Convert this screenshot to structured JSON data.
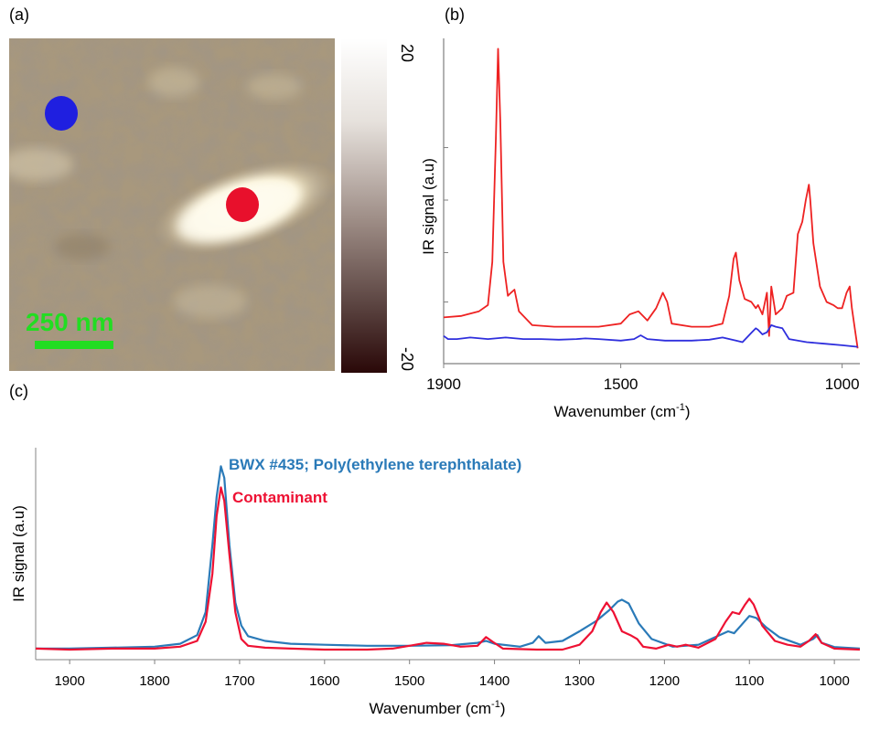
{
  "panels": {
    "a": {
      "label": "(a)",
      "scale_bar_text": "250 nm",
      "colorbar_max": "20",
      "colorbar_min": "-20",
      "markers": [
        {
          "name": "blue-marker",
          "color": "#1f1fe0"
        },
        {
          "name": "red-marker",
          "color": "#e8102c"
        }
      ],
      "colors": {
        "scale_bar": "#22dd22",
        "colorbar_top": "#ffffff",
        "colorbar_bottom": "#2a0808"
      }
    },
    "b": {
      "label": "(b)"
    },
    "c": {
      "label": "(c)"
    }
  },
  "chart_data": [
    {
      "type": "line",
      "panel": "b",
      "xlabel": "Wavenumber (cm",
      "xlabel_sup": "-1",
      "xlabel_end": ")",
      "ylabel": "IR signal (a.u)",
      "xlim": [
        1900,
        960
      ],
      "ylim": [
        0,
        1
      ],
      "x_ticks": [
        1900,
        1500,
        1000
      ],
      "series": [
        {
          "color": "#ee2222",
          "points": [
            [
              1900,
              0.12
            ],
            [
              1860,
              0.125
            ],
            [
              1820,
              0.14
            ],
            [
              1800,
              0.16
            ],
            [
              1790,
              0.3
            ],
            [
              1782,
              0.7
            ],
            [
              1777,
              0.99
            ],
            [
              1772,
              0.75
            ],
            [
              1765,
              0.3
            ],
            [
              1755,
              0.19
            ],
            [
              1748,
              0.2
            ],
            [
              1740,
              0.21
            ],
            [
              1730,
              0.14
            ],
            [
              1700,
              0.095
            ],
            [
              1650,
              0.09
            ],
            [
              1600,
              0.09
            ],
            [
              1550,
              0.09
            ],
            [
              1500,
              0.1
            ],
            [
              1480,
              0.13
            ],
            [
              1460,
              0.14
            ],
            [
              1440,
              0.11
            ],
            [
              1420,
              0.15
            ],
            [
              1405,
              0.2
            ],
            [
              1395,
              0.17
            ],
            [
              1385,
              0.1
            ],
            [
              1340,
              0.09
            ],
            [
              1300,
              0.09
            ],
            [
              1270,
              0.1
            ],
            [
              1255,
              0.19
            ],
            [
              1245,
              0.31
            ],
            [
              1240,
              0.33
            ],
            [
              1232,
              0.24
            ],
            [
              1220,
              0.18
            ],
            [
              1205,
              0.17
            ],
            [
              1195,
              0.15
            ],
            [
              1190,
              0.16
            ],
            [
              1180,
              0.13
            ],
            [
              1170,
              0.2
            ],
            [
              1165,
              0.06
            ],
            [
              1160,
              0.22
            ],
            [
              1150,
              0.13
            ],
            [
              1135,
              0.15
            ],
            [
              1125,
              0.19
            ],
            [
              1110,
              0.2
            ],
            [
              1100,
              0.39
            ],
            [
              1090,
              0.43
            ],
            [
              1082,
              0.5
            ],
            [
              1075,
              0.55
            ],
            [
              1072,
              0.5
            ],
            [
              1065,
              0.36
            ],
            [
              1050,
              0.22
            ],
            [
              1035,
              0.17
            ],
            [
              1020,
              0.16
            ],
            [
              1010,
              0.15
            ],
            [
              1000,
              0.15
            ],
            [
              990,
              0.2
            ],
            [
              983,
              0.22
            ],
            [
              978,
              0.15
            ],
            [
              972,
              0.09
            ],
            [
              965,
              0.02
            ]
          ]
        },
        {
          "color": "#2f2fdd",
          "points": [
            [
              1900,
              0.06
            ],
            [
              1890,
              0.05
            ],
            [
              1870,
              0.05
            ],
            [
              1840,
              0.055
            ],
            [
              1800,
              0.05
            ],
            [
              1760,
              0.055
            ],
            [
              1720,
              0.05
            ],
            [
              1680,
              0.05
            ],
            [
              1640,
              0.048
            ],
            [
              1600,
              0.05
            ],
            [
              1580,
              0.052
            ],
            [
              1550,
              0.05
            ],
            [
              1500,
              0.045
            ],
            [
              1470,
              0.05
            ],
            [
              1455,
              0.062
            ],
            [
              1440,
              0.05
            ],
            [
              1400,
              0.045
            ],
            [
              1340,
              0.045
            ],
            [
              1300,
              0.048
            ],
            [
              1270,
              0.055
            ],
            [
              1240,
              0.045
            ],
            [
              1225,
              0.04
            ],
            [
              1205,
              0.07
            ],
            [
              1195,
              0.085
            ],
            [
              1190,
              0.08
            ],
            [
              1180,
              0.065
            ],
            [
              1170,
              0.072
            ],
            [
              1160,
              0.095
            ],
            [
              1150,
              0.09
            ],
            [
              1135,
              0.085
            ],
            [
              1120,
              0.05
            ],
            [
              1080,
              0.04
            ],
            [
              1040,
              0.035
            ],
            [
              1000,
              0.03
            ],
            [
              965,
              0.025
            ]
          ]
        }
      ]
    },
    {
      "type": "line",
      "panel": "c",
      "xlabel": "Wavenumber (cm",
      "xlabel_sup": "-1",
      "xlabel_end": ")",
      "ylabel": "IR signal (a.u)",
      "xlim": [
        1940,
        970
      ],
      "ylim": [
        0,
        1
      ],
      "x_ticks": [
        1900,
        1800,
        1700,
        1600,
        1500,
        1400,
        1300,
        1200,
        1100,
        1000
      ],
      "series": [
        {
          "name": "BWX #435; Poly(ethylene terephthalate)",
          "color": "#2a7ab8",
          "points": [
            [
              1940,
              0.01
            ],
            [
              1900,
              0.01
            ],
            [
              1850,
              0.015
            ],
            [
              1800,
              0.02
            ],
            [
              1770,
              0.035
            ],
            [
              1750,
              0.08
            ],
            [
              1740,
              0.2
            ],
            [
              1732,
              0.55
            ],
            [
              1727,
              0.8
            ],
            [
              1722,
              0.96
            ],
            [
              1718,
              0.9
            ],
            [
              1712,
              0.55
            ],
            [
              1705,
              0.25
            ],
            [
              1698,
              0.13
            ],
            [
              1690,
              0.075
            ],
            [
              1670,
              0.05
            ],
            [
              1640,
              0.035
            ],
            [
              1600,
              0.03
            ],
            [
              1550,
              0.025
            ],
            [
              1500,
              0.025
            ],
            [
              1450,
              0.028
            ],
            [
              1420,
              0.04
            ],
            [
              1410,
              0.05
            ],
            [
              1400,
              0.035
            ],
            [
              1370,
              0.02
            ],
            [
              1355,
              0.04
            ],
            [
              1348,
              0.075
            ],
            [
              1340,
              0.04
            ],
            [
              1320,
              0.05
            ],
            [
              1300,
              0.1
            ],
            [
              1280,
              0.155
            ],
            [
              1265,
              0.21
            ],
            [
              1255,
              0.255
            ],
            [
              1250,
              0.265
            ],
            [
              1242,
              0.245
            ],
            [
              1230,
              0.14
            ],
            [
              1215,
              0.06
            ],
            [
              1190,
              0.02
            ],
            [
              1160,
              0.03
            ],
            [
              1140,
              0.07
            ],
            [
              1125,
              0.1
            ],
            [
              1118,
              0.09
            ],
            [
              1110,
              0.13
            ],
            [
              1100,
              0.18
            ],
            [
              1092,
              0.17
            ],
            [
              1080,
              0.12
            ],
            [
              1065,
              0.07
            ],
            [
              1040,
              0.03
            ],
            [
              1025,
              0.06
            ],
            [
              1020,
              0.08
            ],
            [
              1015,
              0.04
            ],
            [
              1000,
              0.018
            ],
            [
              970,
              0.01
            ]
          ]
        },
        {
          "name": "Contaminant",
          "color": "#ee1133",
          "points": [
            [
              1940,
              0.01
            ],
            [
              1900,
              0.005
            ],
            [
              1850,
              0.01
            ],
            [
              1800,
              0.01
            ],
            [
              1770,
              0.02
            ],
            [
              1750,
              0.05
            ],
            [
              1740,
              0.15
            ],
            [
              1732,
              0.4
            ],
            [
              1727,
              0.7
            ],
            [
              1722,
              0.85
            ],
            [
              1718,
              0.78
            ],
            [
              1712,
              0.5
            ],
            [
              1705,
              0.2
            ],
            [
              1698,
              0.06
            ],
            [
              1690,
              0.025
            ],
            [
              1670,
              0.015
            ],
            [
              1640,
              0.01
            ],
            [
              1600,
              0.005
            ],
            [
              1550,
              0.005
            ],
            [
              1520,
              0.01
            ],
            [
              1500,
              0.025
            ],
            [
              1480,
              0.04
            ],
            [
              1460,
              0.035
            ],
            [
              1440,
              0.02
            ],
            [
              1420,
              0.025
            ],
            [
              1410,
              0.07
            ],
            [
              1402,
              0.045
            ],
            [
              1390,
              0.01
            ],
            [
              1350,
              0.005
            ],
            [
              1320,
              0.005
            ],
            [
              1300,
              0.03
            ],
            [
              1285,
              0.1
            ],
            [
              1275,
              0.2
            ],
            [
              1268,
              0.25
            ],
            [
              1260,
              0.2
            ],
            [
              1250,
              0.1
            ],
            [
              1240,
              0.08
            ],
            [
              1232,
              0.06
            ],
            [
              1225,
              0.02
            ],
            [
              1210,
              0.01
            ],
            [
              1195,
              0.03
            ],
            [
              1185,
              0.02
            ],
            [
              1175,
              0.03
            ],
            [
              1160,
              0.015
            ],
            [
              1140,
              0.06
            ],
            [
              1128,
              0.15
            ],
            [
              1120,
              0.2
            ],
            [
              1112,
              0.19
            ],
            [
              1105,
              0.24
            ],
            [
              1100,
              0.27
            ],
            [
              1095,
              0.24
            ],
            [
              1085,
              0.13
            ],
            [
              1070,
              0.05
            ],
            [
              1055,
              0.03
            ],
            [
              1040,
              0.02
            ],
            [
              1030,
              0.05
            ],
            [
              1022,
              0.085
            ],
            [
              1015,
              0.04
            ],
            [
              1000,
              0.01
            ],
            [
              970,
              0.005
            ]
          ]
        }
      ]
    }
  ]
}
